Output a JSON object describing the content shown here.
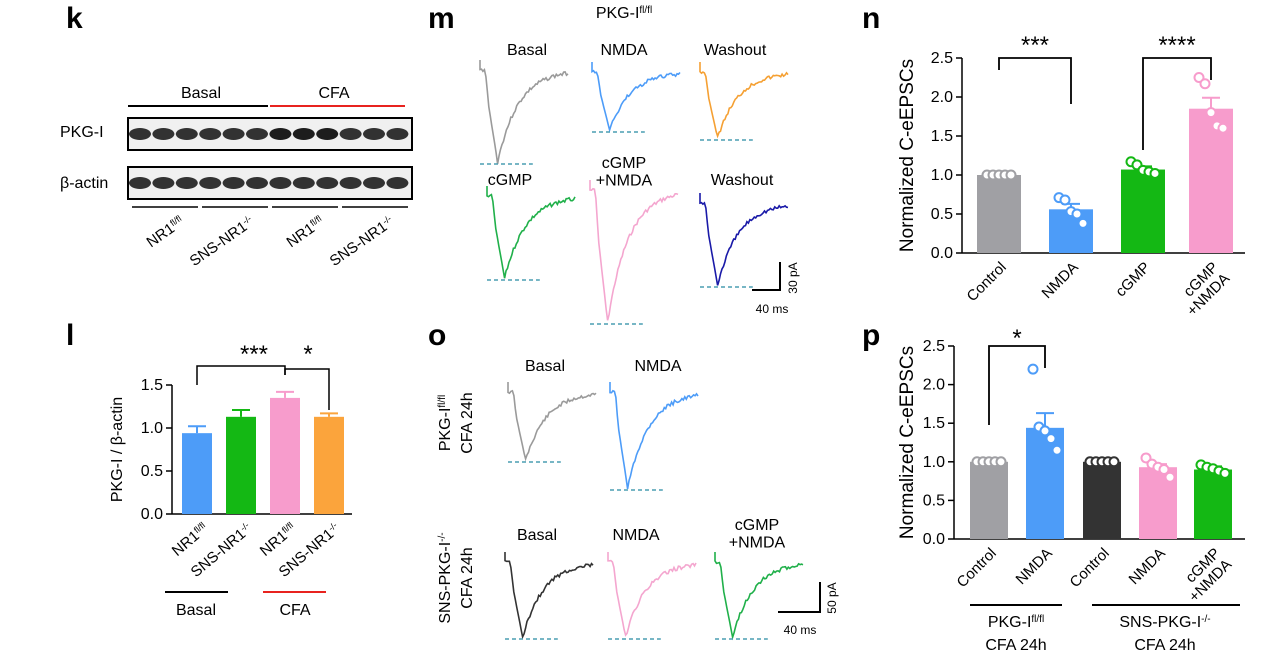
{
  "panels": {
    "k": {
      "letter": "k",
      "groups": [
        {
          "label": "Basal",
          "color": "#000000"
        },
        {
          "label": "CFA",
          "color": "#e8231f"
        }
      ],
      "rows": [
        "PKG-I",
        "β-actin"
      ],
      "lanes": [
        {
          "base": "NR1",
          "sup": "fl/fl"
        },
        {
          "base": "SNS-NR1",
          "sup": "-/-"
        },
        {
          "base": "NR1",
          "sup": "fl/fl"
        },
        {
          "base": "SNS-NR1",
          "sup": "-/-"
        }
      ]
    },
    "l": {
      "letter": "l",
      "chart_data": {
        "type": "bar",
        "ylabel": "PKG-I / β-actin",
        "ylim": [
          0,
          1.5
        ],
        "yticks": [
          "0.0",
          "0.5",
          "1.0",
          "1.5"
        ],
        "categories": [
          {
            "base": "NR1",
            "sup": "fl/fl"
          },
          {
            "base": "SNS-NR1",
            "sup": "-/-"
          },
          {
            "base": "NR1",
            "sup": "fl/fl"
          },
          {
            "base": "SNS-NR1",
            "sup": "-/-"
          }
        ],
        "values": [
          0.94,
          1.13,
          1.35,
          1.13
        ],
        "errors": [
          0.08,
          0.08,
          0.07,
          0.04
        ],
        "colors": [
          "#4d9cf8",
          "#14b814",
          "#f79ccc",
          "#fba43c"
        ],
        "groups": [
          {
            "label": "Basal",
            "color": "#000000"
          },
          {
            "label": "CFA",
            "color": "#e8231f"
          }
        ],
        "significance": [
          {
            "from": 0,
            "to": 2,
            "label": "***"
          },
          {
            "from": 2,
            "to": 3,
            "label": "*"
          }
        ]
      }
    },
    "m": {
      "letter": "m",
      "title": {
        "base": "PKG-I",
        "sup": "fl/fl"
      },
      "traces": [
        {
          "label": "Basal",
          "color": "#9a9a9a"
        },
        {
          "label": "NMDA",
          "color": "#4d9cf8"
        },
        {
          "label": "Washout",
          "color": "#f5a033"
        },
        {
          "label": "cGMP",
          "color": "#20b04a"
        },
        {
          "label": "cGMP\n+NMDA",
          "color": "#f4a6cf"
        },
        {
          "label": "Washout",
          "color": "#1a1aa8"
        }
      ],
      "scale": {
        "time": "40 ms",
        "amp": "30 pA"
      }
    },
    "n": {
      "letter": "n",
      "chart_data": {
        "type": "bar",
        "ylabel": "Normalized C-eEPSCs",
        "ylim": [
          0,
          2.5
        ],
        "yticks": [
          "0.0",
          "0.5",
          "1.0",
          "1.5",
          "2.0",
          "2.5"
        ],
        "categories": [
          "Control",
          "NMDA",
          "cGMP",
          "cGMP\n+NMDA"
        ],
        "values": [
          1.0,
          0.56,
          1.07,
          1.85
        ],
        "errors": [
          0.0,
          0.07,
          0.04,
          0.14
        ],
        "colors": [
          "#a0a0a4",
          "#4d9cf8",
          "#14b814",
          "#f79ccc"
        ],
        "points": [
          [
            1.0,
            1.0,
            1.0,
            1.0,
            1.0
          ],
          [
            0.71,
            0.68,
            0.53,
            0.5,
            0.38
          ],
          [
            1.17,
            1.13,
            1.06,
            1.04,
            1.02
          ],
          [
            2.25,
            2.17,
            1.8,
            1.63,
            1.6
          ]
        ],
        "significance": [
          {
            "from": 0,
            "to": 1,
            "label": "***"
          },
          {
            "from": 2,
            "to": 3,
            "label": "****"
          }
        ]
      }
    },
    "o": {
      "letter": "o",
      "row1": {
        "label": {
          "line1_base": "PKG-I",
          "line1_sup": "fl/fl",
          "line2": "CFA 24h"
        },
        "traces": [
          {
            "label": "Basal",
            "color": "#9a9a9a"
          },
          {
            "label": "NMDA",
            "color": "#4d9cf8"
          }
        ]
      },
      "row2": {
        "label": {
          "line1_base": "SNS-PKG-I",
          "line1_sup": "-/-",
          "line2": "CFA 24h"
        },
        "traces": [
          {
            "label": "Basal",
            "color": "#333333"
          },
          {
            "label": "NMDA",
            "color": "#f4a6cf"
          },
          {
            "label": "cGMP\n+NMDA",
            "color": "#20b04a"
          }
        ]
      },
      "scale": {
        "time": "40 ms",
        "amp": "50 pA"
      }
    },
    "p": {
      "letter": "p",
      "chart_data": {
        "type": "bar",
        "ylabel": "Normalized C-eEPSCs",
        "ylim": [
          0,
          2.5
        ],
        "yticks": [
          "0.0",
          "0.5",
          "1.0",
          "1.5",
          "2.0",
          "2.5"
        ],
        "categories": [
          "Control",
          "NMDA",
          "Control",
          "NMDA",
          "cGMP\n+NMDA"
        ],
        "values": [
          1.0,
          1.44,
          1.0,
          0.93,
          0.9
        ],
        "errors": [
          0.0,
          0.19,
          0.0,
          0.04,
          0.04
        ],
        "colors": [
          "#a0a0a4",
          "#4d9cf8",
          "#333333",
          "#f79ccc",
          "#14b814"
        ],
        "points": [
          [
            1.0,
            1.0,
            1.0,
            1.0,
            1.0
          ],
          [
            2.2,
            1.45,
            1.4,
            1.3,
            1.15
          ],
          [
            1.0,
            1.0,
            1.0,
            1.0,
            1.0
          ],
          [
            1.05,
            0.97,
            0.93,
            0.9,
            0.8
          ],
          [
            0.96,
            0.93,
            0.91,
            0.88,
            0.85
          ]
        ],
        "significance": [
          {
            "from": 0,
            "to": 1,
            "label": "*"
          }
        ],
        "groups": [
          {
            "line1_base": "PKG-I",
            "line1_sup": "fl/fl",
            "line2": "CFA 24h"
          },
          {
            "line1_base": "SNS-PKG-I",
            "line1_sup": "-/-",
            "line2": "CFA 24h"
          }
        ]
      }
    }
  }
}
